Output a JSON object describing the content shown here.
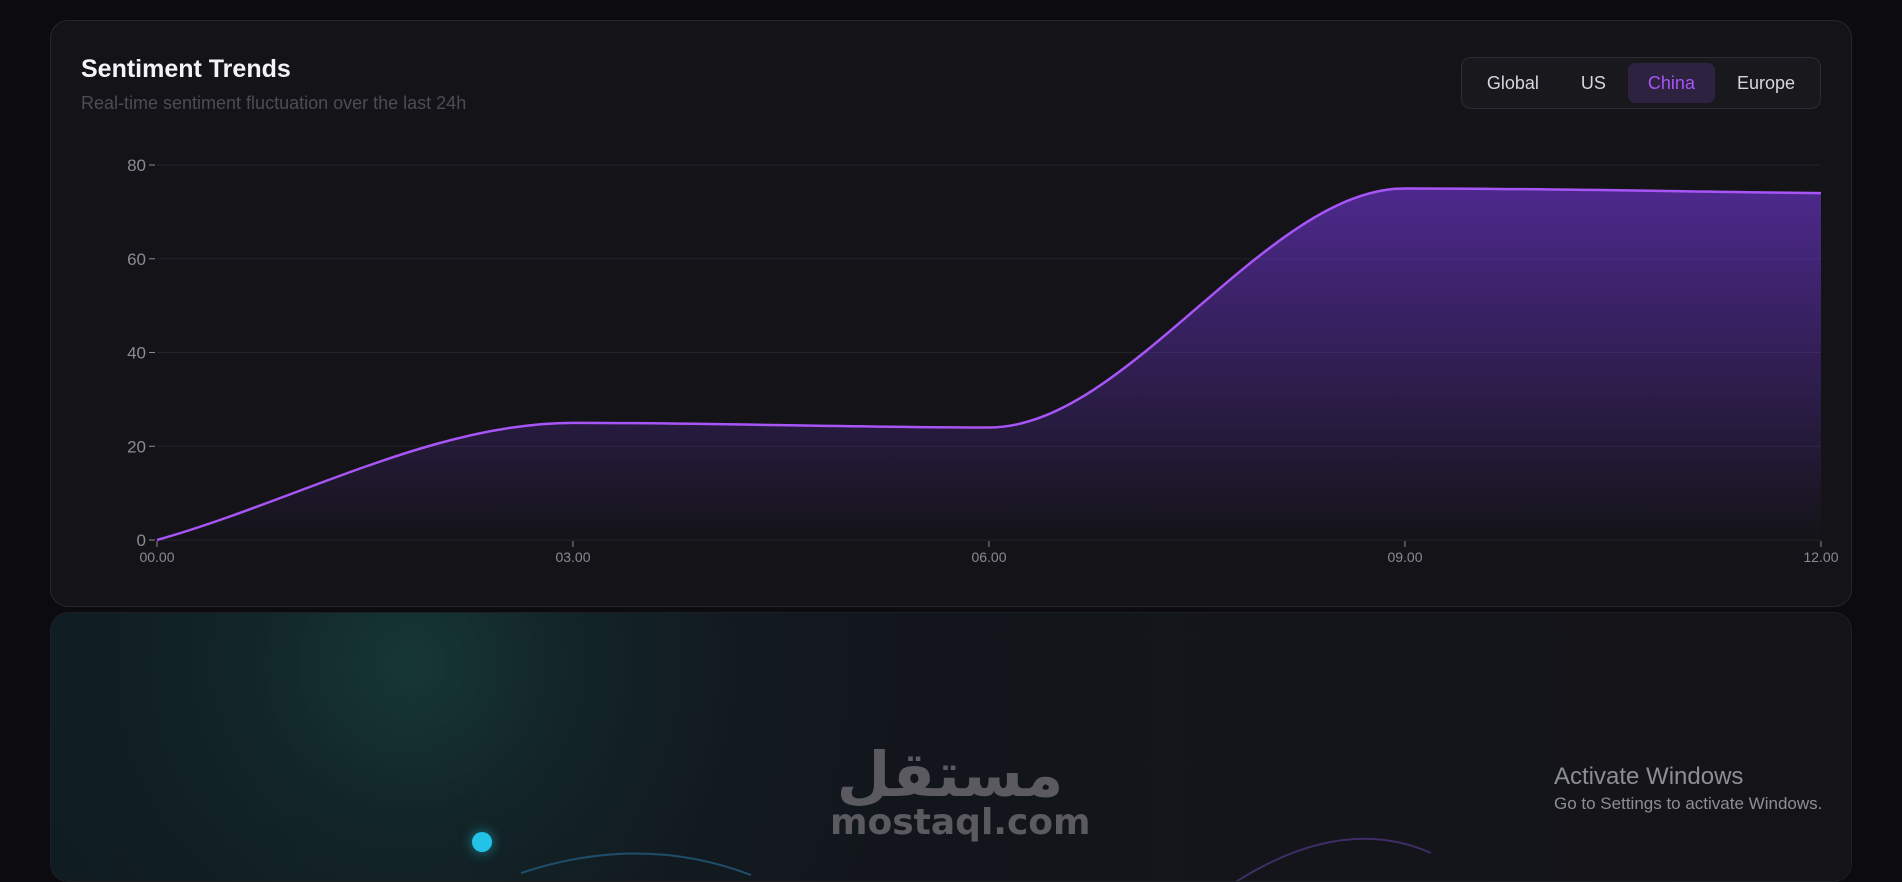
{
  "card": {
    "title": "Sentiment Trends",
    "subtitle": "Real-time sentiment fluctuation over the last 24h"
  },
  "region_tabs": [
    {
      "label": "Global",
      "active": false
    },
    {
      "label": "US",
      "active": false
    },
    {
      "label": "China",
      "active": true
    },
    {
      "label": "Europe",
      "active": false
    }
  ],
  "colors": {
    "accent": "#a855f7",
    "line": "#a855f7",
    "area_fill": "#7c3aed",
    "grid": "#22222a",
    "axis": "#8a8a94",
    "pulse_dot": "#22c3e6"
  },
  "chart_data": {
    "type": "area",
    "x": [
      "00.00",
      "03.00",
      "06.00",
      "09.00",
      "12.00"
    ],
    "values": [
      0,
      25,
      24,
      75,
      74
    ],
    "y_ticks": [
      0,
      20,
      40,
      60,
      80
    ],
    "ylim": [
      0,
      80
    ],
    "grid": true,
    "title": "",
    "xlabel": "",
    "ylabel": ""
  },
  "watermark": {
    "logo_text": "مستقل",
    "url": "mostaql.com"
  },
  "windows_notice": {
    "title": "Activate Windows",
    "subtitle": "Go to Settings to activate Windows."
  }
}
